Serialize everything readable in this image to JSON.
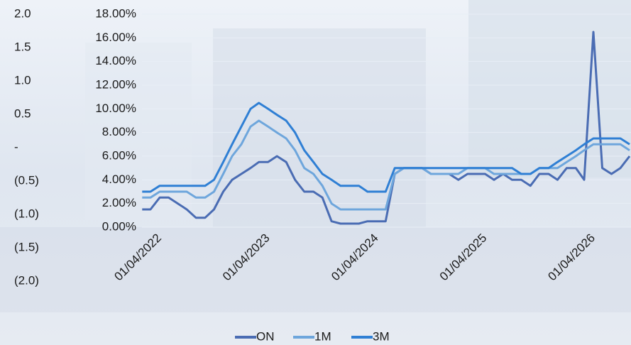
{
  "chart_data": {
    "type": "line",
    "x": [
      "01/02/2022",
      "01/03/2022",
      "01/04/2022",
      "01/05/2022",
      "01/06/2022",
      "01/07/2022",
      "01/08/2022",
      "01/09/2022",
      "01/10/2022",
      "01/11/2022",
      "01/12/2022",
      "01/01/2023",
      "01/02/2023",
      "01/03/2023",
      "01/04/2023",
      "01/05/2023",
      "01/06/2023",
      "01/07/2023",
      "01/08/2023",
      "01/09/2023",
      "01/10/2023",
      "01/11/2023",
      "01/12/2023",
      "01/01/2024",
      "01/02/2024",
      "01/03/2024",
      "01/04/2024",
      "01/05/2024",
      "01/06/2024",
      "01/07/2024",
      "01/08/2024",
      "01/09/2024",
      "01/10/2024",
      "01/11/2024",
      "01/12/2024",
      "01/01/2025",
      "01/02/2025",
      "01/03/2025",
      "01/04/2025",
      "01/05/2025",
      "01/06/2025",
      "01/07/2025",
      "01/08/2025",
      "01/09/2025",
      "01/10/2025",
      "01/11/2025",
      "01/12/2025",
      "01/01/2026",
      "01/02/2026",
      "01/03/2026",
      "01/04/2026",
      "01/05/2026",
      "01/06/2026",
      "01/07/2026",
      "01/08/2026"
    ],
    "series": [
      {
        "name": "ON",
        "color": "#4a6cb3",
        "values": [
          1.5,
          1.5,
          2.5,
          2.5,
          2,
          1.5,
          0.8,
          0.8,
          1.5,
          3,
          4,
          4.5,
          5,
          5.5,
          5.5,
          6,
          5.5,
          4,
          3,
          3,
          2.5,
          0.5,
          0.3,
          0.3,
          0.3,
          0.5,
          0.5,
          0.5,
          4.5,
          5,
          5,
          5,
          4.5,
          4.5,
          4.5,
          4,
          4.5,
          4.5,
          4.5,
          4,
          4.5,
          4,
          4,
          3.5,
          4.5,
          4.5,
          4,
          5,
          5,
          4,
          16.5,
          5,
          4.5,
          5,
          6
        ]
      },
      {
        "name": "1M",
        "color": "#6ea6dc",
        "values": [
          2.5,
          2.5,
          3,
          3,
          3,
          3,
          2.5,
          2.5,
          3,
          4.5,
          6,
          7,
          8.5,
          9,
          8.5,
          8,
          7.5,
          6.5,
          5,
          4.5,
          3.5,
          2,
          1.5,
          1.5,
          1.5,
          1.5,
          1.5,
          1.5,
          4.5,
          5,
          5,
          5,
          4.5,
          4.5,
          4.5,
          4.5,
          5,
          5,
          5,
          4.5,
          4.5,
          4.5,
          4.5,
          4.5,
          5,
          5,
          5,
          5.5,
          6,
          6.5,
          7,
          7,
          7,
          7,
          6.5
        ]
      },
      {
        "name": "3M",
        "color": "#2f7fd4",
        "values": [
          3,
          3,
          3.5,
          3.5,
          3.5,
          3.5,
          3.5,
          3.5,
          4,
          5.5,
          7,
          8.5,
          10,
          10.5,
          10,
          9.5,
          9,
          8,
          6.5,
          5.5,
          4.5,
          4,
          3.5,
          3.5,
          3.5,
          3,
          3,
          3,
          5,
          5,
          5,
          5,
          5,
          5,
          5,
          5,
          5,
          5,
          5,
          5,
          5,
          5,
          4.5,
          4.5,
          5,
          5,
          5.5,
          6,
          6.5,
          7,
          7.5,
          7.5,
          7.5,
          7.5,
          7
        ]
      }
    ],
    "xticks": [
      "01/04/2022",
      "01/04/2023",
      "01/04/2024",
      "01/04/2025",
      "01/04/2026"
    ],
    "ylim": [
      0,
      18
    ],
    "yticks": [
      {
        "value": 0,
        "label": "0.00%"
      },
      {
        "value": 2,
        "label": "2.00%"
      },
      {
        "value": 4,
        "label": "4.00%"
      },
      {
        "value": 6,
        "label": "6.00%"
      },
      {
        "value": 8,
        "label": "8.00%"
      },
      {
        "value": 10,
        "label": "10.00%"
      },
      {
        "value": 12,
        "label": "12.00%"
      },
      {
        "value": 14,
        "label": "14.00%"
      },
      {
        "value": 16,
        "label": "16.00%"
      },
      {
        "value": 18,
        "label": "18.00%"
      }
    ],
    "y2lim": [
      -2,
      2
    ],
    "y2ticks": [
      {
        "value": 2,
        "label": "2.0"
      },
      {
        "value": 1.5,
        "label": "1.5"
      },
      {
        "value": 1,
        "label": "1.0"
      },
      {
        "value": 0.5,
        "label": "0.5"
      },
      {
        "value": 0,
        "label": "-"
      },
      {
        "value": -0.5,
        "label": "(0.5)"
      },
      {
        "value": -1,
        "label": "(1.0)"
      },
      {
        "value": -1.5,
        "label": "(1.5)"
      },
      {
        "value": -2,
        "label": "(2.0)"
      }
    ],
    "grid": true,
    "legend": "bottom"
  }
}
